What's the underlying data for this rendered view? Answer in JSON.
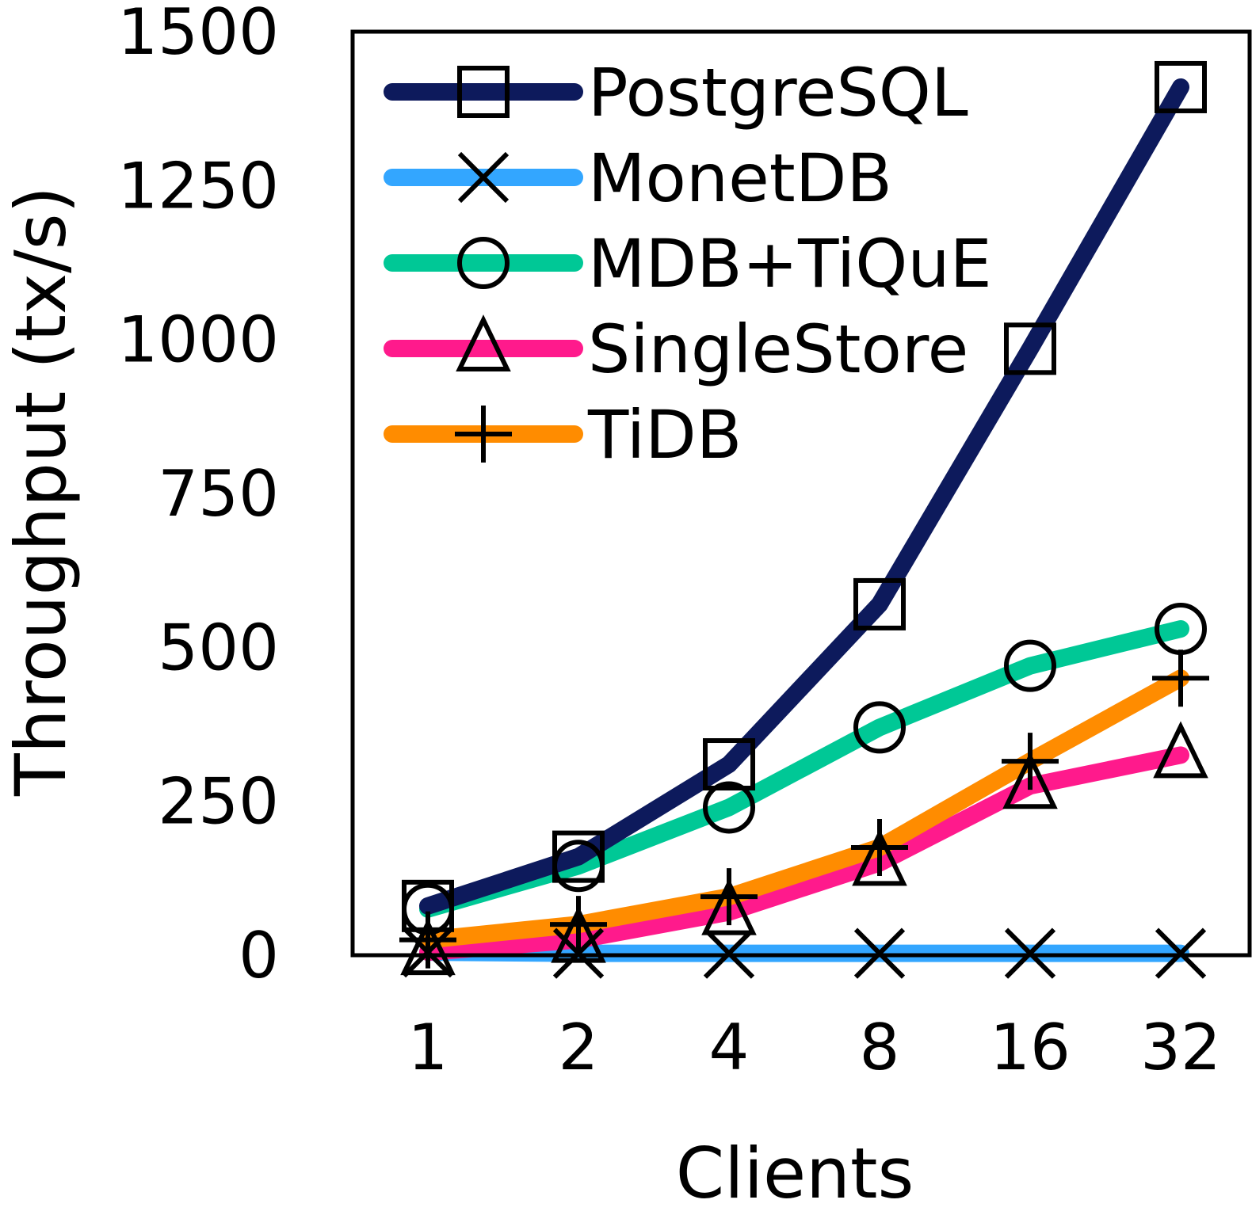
{
  "chart_data": {
    "type": "line",
    "title": "",
    "xlabel": "Clients",
    "ylabel": "Throughput (tx/s)",
    "categories": [
      "1",
      "2",
      "4",
      "8",
      "16",
      "32"
    ],
    "ylim": [
      0,
      1500
    ],
    "yticks": [
      "0",
      "250",
      "500",
      "750",
      "1000",
      "1250",
      "1500"
    ],
    "grid": false,
    "legend_position": "top-left",
    "series": [
      {
        "name": "PostgreSQL",
        "color": "#0d1a5c",
        "marker": "square",
        "values": [
          80,
          160,
          310,
          570,
          985,
          1410
        ]
      },
      {
        "name": "MonetDB",
        "color": "#33a6ff",
        "marker": "x",
        "values": [
          5,
          3,
          3,
          3,
          3,
          3
        ]
      },
      {
        "name": "MDB+TiQuE",
        "color": "#00c896",
        "marker": "circle",
        "values": [
          75,
          145,
          240,
          370,
          470,
          530
        ]
      },
      {
        "name": "SingleStore",
        "color": "#ff1a8c",
        "marker": "triangle",
        "values": [
          5,
          25,
          70,
          150,
          275,
          325
        ]
      },
      {
        "name": "TiDB",
        "color": "#ff8c00",
        "marker": "plus",
        "values": [
          25,
          50,
          95,
          175,
          315,
          450
        ]
      }
    ]
  }
}
